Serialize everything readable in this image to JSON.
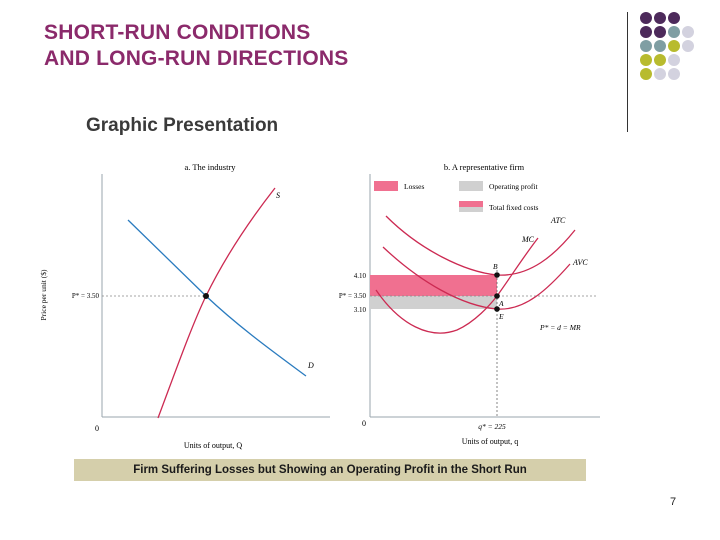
{
  "slide": {
    "title_line1": "SHORT-RUN CONDITIONS",
    "title_line2": "AND LONG-RUN DIRECTIONS",
    "subtitle": "Graphic Presentation",
    "caption": "Firm Suffering Losses but Showing an Operating Profit in the Short Run",
    "page_number": "7"
  },
  "decoration": {
    "colors": [
      "#4d2a5b",
      "#7f9ea3",
      "#b8bb2e",
      "#d3d2df"
    ]
  },
  "colors": {
    "title": "#8b2a6b",
    "supply_mc_curves": "#cc2a52",
    "demand_curve": "#2a7bbf",
    "losses_fill": "#f07090",
    "operating_profit_fill": "#d0d0d0",
    "caption_bar": "#d5cfab"
  },
  "panel_a": {
    "title": "a. The industry",
    "y_axis_label": "Price per unit ($)",
    "x_axis_label": "Units of output, Q",
    "origin_label": "0",
    "price_label": "P* = 3.50",
    "supply_label": "S",
    "demand_label": "D"
  },
  "panel_b": {
    "title": "b. A representative firm",
    "legend": [
      {
        "label": "Losses",
        "color": "#f07090"
      },
      {
        "label": "Operating profit",
        "color": "#d0d0d0"
      },
      {
        "label": "Total fixed costs",
        "color": "#f07090"
      }
    ],
    "price_ticks": [
      "4.10",
      "P* = 3.50",
      "3.10"
    ],
    "origin_label": "0",
    "q_label": "q* = 225",
    "x_axis_label": "Units of output, q",
    "curve_labels": {
      "atc": "ATC",
      "mc": "MC",
      "avc": "AVC",
      "demand": "P* = d = MR"
    },
    "point_labels": {
      "b": "B",
      "a": "A",
      "e": "E"
    }
  }
}
